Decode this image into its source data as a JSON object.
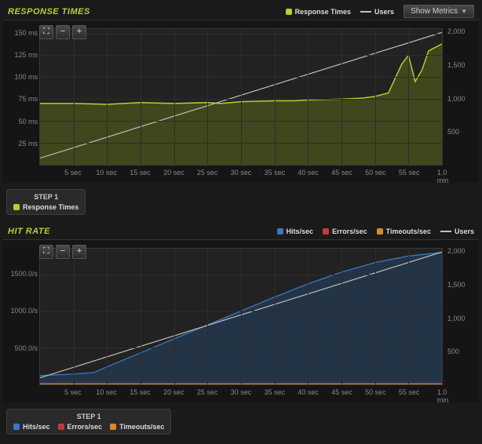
{
  "response_panel": {
    "title": "RESPONSE TIMES",
    "show_metrics_label": "Show Metrics",
    "legend": [
      {
        "label": "Response Times",
        "color": "#b8d030",
        "type": "area"
      },
      {
        "label": "Users",
        "color": "#bfbfbf",
        "type": "line"
      }
    ],
    "toolbar": {
      "fullscreen": "⛶",
      "zoom_out": "−",
      "zoom_in": "+"
    },
    "chart": {
      "y_left": {
        "ticks": [
          25,
          50,
          75,
          100,
          125,
          150
        ],
        "unit": " ms",
        "min": 0,
        "max": 155
      },
      "y_right": {
        "ticks": [
          500,
          1000,
          1500,
          2000
        ],
        "min": 0,
        "max": 2050
      },
      "x": {
        "ticks": [
          "5 sec",
          "10 sec",
          "15 sec",
          "20 sec",
          "25 sec",
          "30 sec",
          "35 sec",
          "40 sec",
          "45 sec",
          "50 sec",
          "55 sec",
          "1.0 min"
        ],
        "min": 0,
        "max": 60
      },
      "background": "#222222",
      "grid_color": "#2d2d2d",
      "series": {
        "response_times": {
          "color": "#b8d030",
          "fill": "#5a6618",
          "fill_opacity": 0.55,
          "line_width": 1.5,
          "x": [
            0,
            5,
            10,
            15,
            20,
            25,
            27,
            30,
            35,
            38,
            40,
            45,
            48,
            50,
            52,
            54,
            55,
            56,
            57,
            58,
            60
          ],
          "y": [
            70,
            70,
            69,
            71,
            70,
            71,
            70,
            72,
            73,
            73,
            74,
            75,
            76,
            78,
            82,
            115,
            125,
            95,
            108,
            130,
            138
          ]
        },
        "users": {
          "color": "#bfbfbf",
          "line_width": 1.2,
          "x": [
            0,
            60
          ],
          "y": [
            100,
            2000
          ]
        }
      }
    },
    "step": {
      "name": "STEP 1",
      "items": [
        {
          "label": "Response Times",
          "color": "#b8d030"
        }
      ]
    }
  },
  "hit_panel": {
    "title": "HIT RATE",
    "legend": [
      {
        "label": "Hits/sec",
        "color": "#3a78c4",
        "type": "area"
      },
      {
        "label": "Errors/sec",
        "color": "#c43a3a",
        "type": "area"
      },
      {
        "label": "Timeouts/sec",
        "color": "#d68a2a",
        "type": "area"
      },
      {
        "label": "Users",
        "color": "#bfbfbf",
        "type": "line"
      }
    ],
    "toolbar": {
      "fullscreen": "⛶",
      "zoom_out": "−",
      "zoom_in": "+"
    },
    "chart": {
      "y_left": {
        "ticks": [
          500,
          1000,
          1500
        ],
        "suffix": ".0/s",
        "min": 0,
        "max": 1850
      },
      "y_right": {
        "ticks": [
          500,
          1000,
          1500,
          2000
        ],
        "min": 0,
        "max": 2050
      },
      "x": {
        "ticks": [
          "5 sec",
          "10 sec",
          "15 sec",
          "20 sec",
          "25 sec",
          "30 sec",
          "35 sec",
          "40 sec",
          "45 sec",
          "50 sec",
          "55 sec",
          "1.0 min"
        ],
        "min": 0,
        "max": 60
      },
      "background": "#222222",
      "grid_color": "#2d2d2d",
      "series": {
        "hits": {
          "color": "#3a78c4",
          "fill": "#24415f",
          "fill_opacity": 0.6,
          "line_width": 1.3,
          "x": [
            0,
            5,
            8,
            10,
            15,
            20,
            25,
            30,
            35,
            40,
            45,
            50,
            55,
            60
          ],
          "y": [
            120,
            140,
            160,
            240,
            430,
            620,
            810,
            1000,
            1190,
            1370,
            1530,
            1660,
            1750,
            1800
          ]
        },
        "errors": {
          "color": "#c43a3a",
          "fill": "#5a1e1e",
          "fill_opacity": 0.8,
          "line_width": 1.2,
          "x": [
            0,
            60
          ],
          "y": [
            12,
            12
          ]
        },
        "timeouts": {
          "color": "#d68a2a",
          "fill": "#6a4a1a",
          "fill_opacity": 0.8,
          "line_width": 1.2,
          "x": [
            0,
            60
          ],
          "y": [
            2,
            2
          ]
        },
        "users": {
          "color": "#bfbfbf",
          "line_width": 1.2,
          "x": [
            0,
            60
          ],
          "y": [
            100,
            2000
          ]
        }
      }
    },
    "step": {
      "name": "STEP 1",
      "items": [
        {
          "label": "Hits/sec",
          "color": "#3a78c4"
        },
        {
          "label": "Errors/sec",
          "color": "#c43a3a"
        },
        {
          "label": "Timeouts/sec",
          "color": "#d68a2a"
        }
      ]
    }
  }
}
